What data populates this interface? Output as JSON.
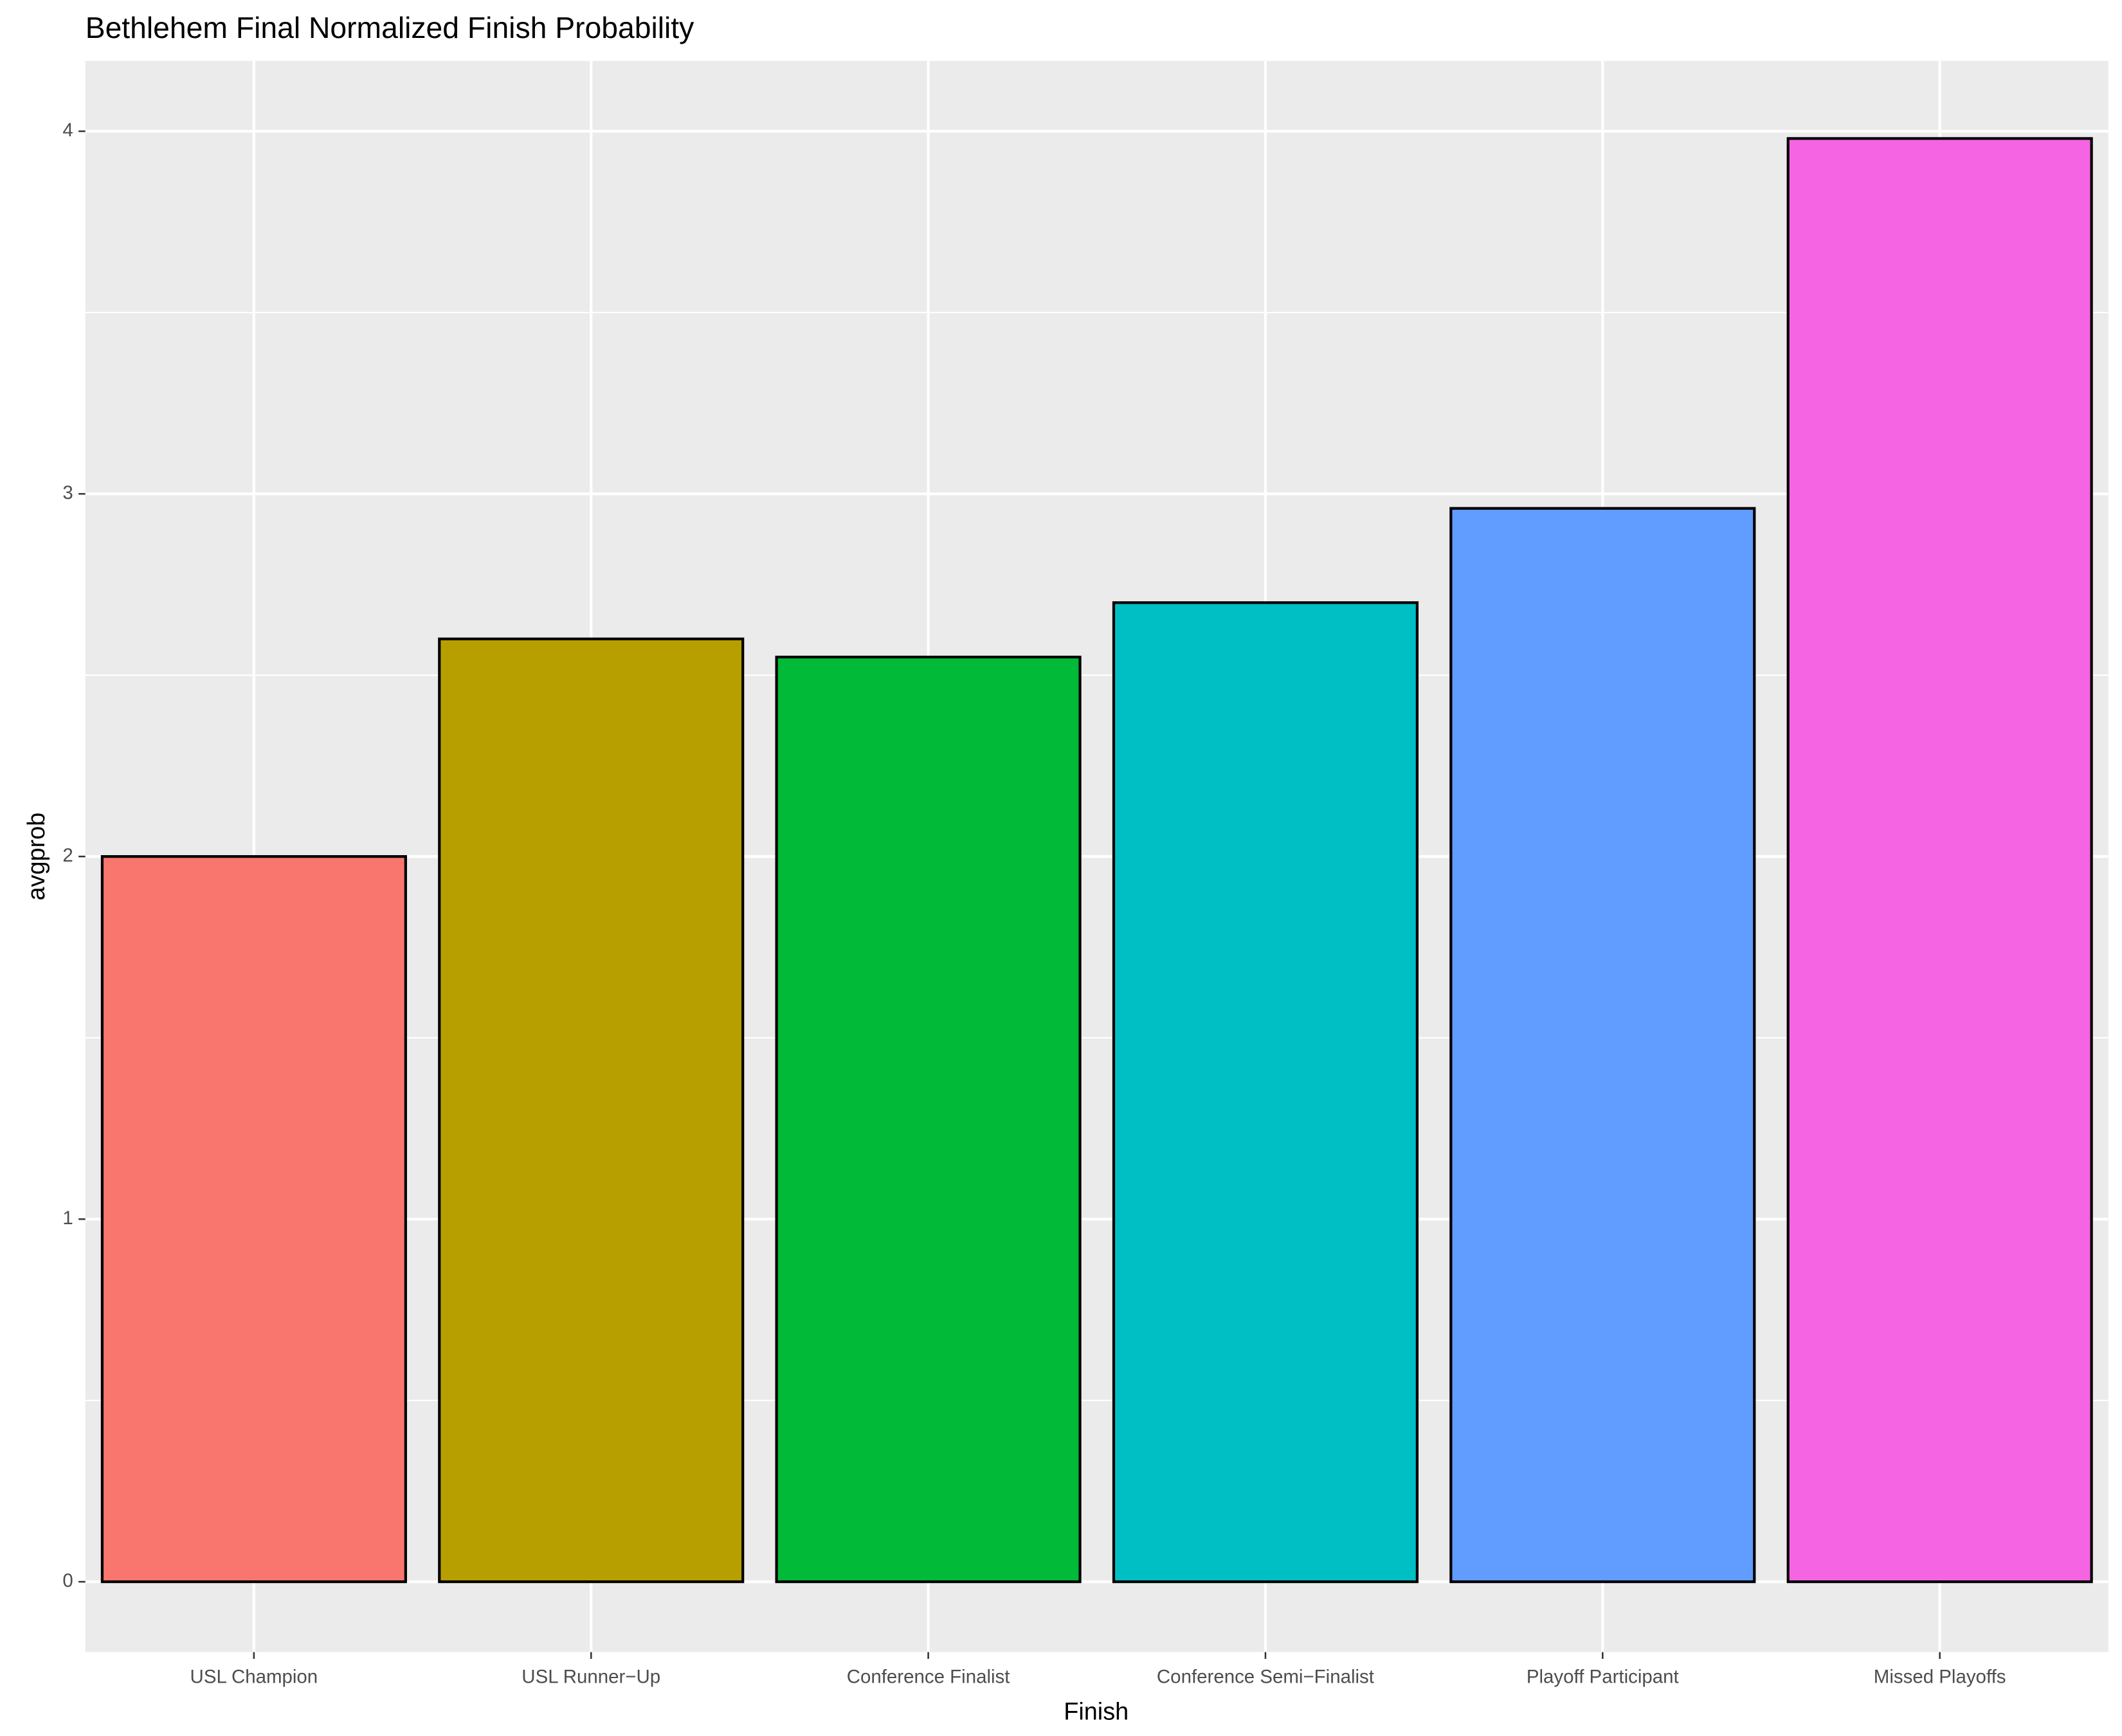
{
  "chart_data": {
    "type": "bar",
    "title": "Bethlehem Final Normalized Finish Probability",
    "x_label": "Finish",
    "y_label": "avgprob",
    "categories": [
      "USL Champion",
      "USL Runner−Up",
      "Conference Finalist",
      "Conference Semi−Finalist",
      "Playoff Participant",
      "Missed Playoffs"
    ],
    "values": [
      2.0,
      2.6,
      2.55,
      2.7,
      2.96,
      3.98
    ],
    "colors": [
      "#F8766D",
      "#B79F00",
      "#00BA38",
      "#00BFC4",
      "#619CFF",
      "#F564E3"
    ],
    "ylim": [
      -0.194,
      4.194
    ],
    "yticks": [
      0,
      1,
      2,
      3,
      4
    ],
    "grid": true
  }
}
